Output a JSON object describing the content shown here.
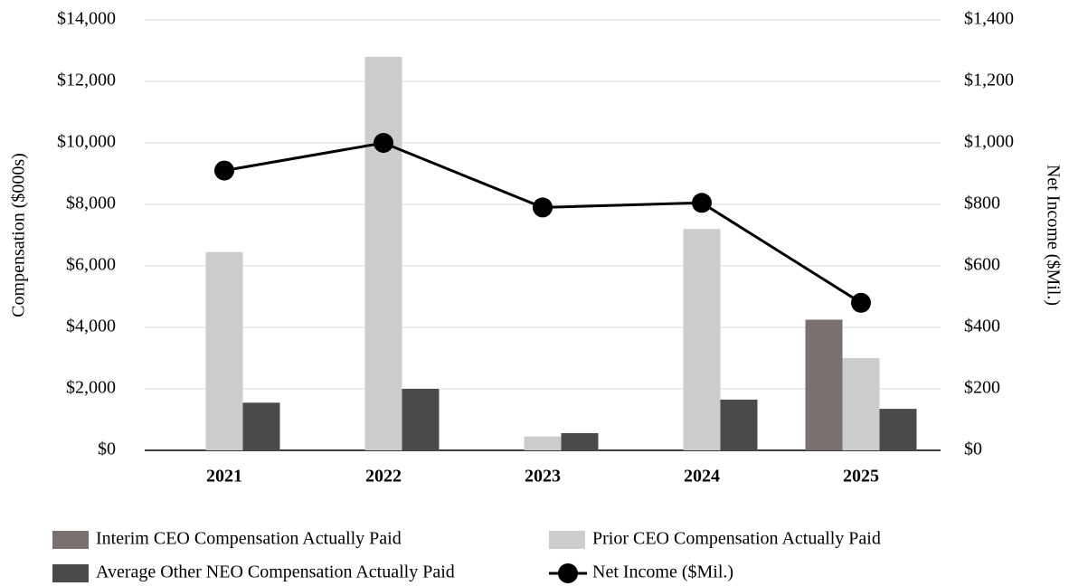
{
  "chart_data": {
    "type": "bar",
    "categories": [
      "2021",
      "2022",
      "2023",
      "2024",
      "2025"
    ],
    "series": [
      {
        "name": "Interim CEO Compensation Actually Paid",
        "color": "#7a7070",
        "values": [
          null,
          null,
          null,
          null,
          4250
        ]
      },
      {
        "name": "Prior CEO Compensation Actually Paid",
        "color": "#cdcdcd",
        "values": [
          6450,
          12800,
          450,
          7200,
          3000
        ]
      },
      {
        "name": "Average Other NEO Compensation Actually Paid",
        "color": "#4a4a4a",
        "values": [
          1550,
          2000,
          560,
          1650,
          1350
        ]
      },
      {
        "name": "Net Income ($Mil.)",
        "color": "#000000",
        "type": "line",
        "axis": "y2",
        "values": [
          910,
          1000,
          790,
          805,
          480
        ]
      }
    ],
    "ylabel": "Compensation ($000s)",
    "y2label": "Net Income ($Mil.)",
    "ylim": [
      0,
      14000
    ],
    "yticks": [
      {
        "value": 0,
        "label": "$0"
      },
      {
        "value": 2000,
        "label": "$2,000"
      },
      {
        "value": 4000,
        "label": "$4,000"
      },
      {
        "value": 6000,
        "label": "$6,000"
      },
      {
        "value": 8000,
        "label": "$8,000"
      },
      {
        "value": 10000,
        "label": "$10,000"
      },
      {
        "value": 12000,
        "label": "$12,000"
      },
      {
        "value": 14000,
        "label": "$14,000"
      }
    ],
    "y2lim": [
      0,
      1400
    ],
    "y2ticks": [
      {
        "value": 0,
        "label": "$0"
      },
      {
        "value": 200,
        "label": "$200"
      },
      {
        "value": 400,
        "label": "$400"
      },
      {
        "value": 600,
        "label": "$600"
      },
      {
        "value": 800,
        "label": "$800"
      },
      {
        "value": 1000,
        "label": "$1,000"
      },
      {
        "value": 1200,
        "label": "$1,200"
      },
      {
        "value": 1400,
        "label": "$1,400"
      }
    ],
    "grid": true,
    "legend": "bottom"
  }
}
